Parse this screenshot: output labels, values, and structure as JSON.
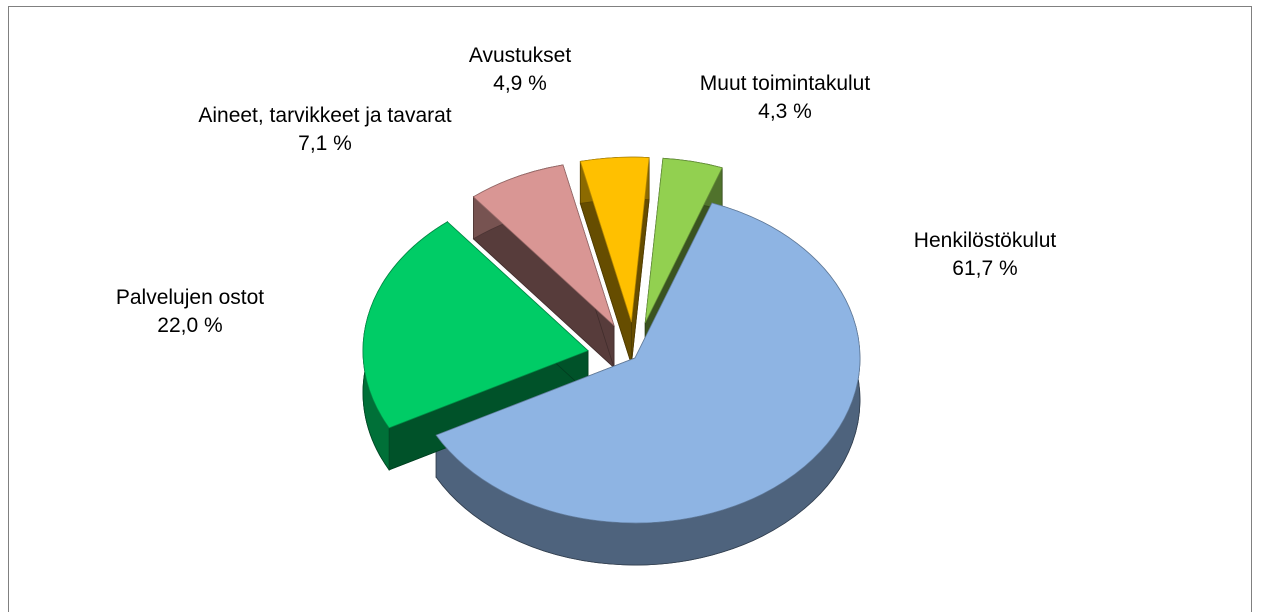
{
  "chart_data": {
    "type": "pie",
    "categories": [
      "Henkilöstökulut",
      "Palvelujen ostot",
      "Aineet, tarvikkeet ja tavarat",
      "Avustukset",
      "Muut toimintakulut"
    ],
    "values": [
      61.7,
      22.0,
      7.1,
      4.9,
      4.3
    ],
    "value_labels": [
      "61,7 %",
      "22,0 %",
      "7,1 %",
      "4,9 %",
      "4,3 %"
    ],
    "colors": [
      "#8eb4e3",
      "#00cc66",
      "#d99694",
      "#ffc000",
      "#92d050"
    ]
  }
}
